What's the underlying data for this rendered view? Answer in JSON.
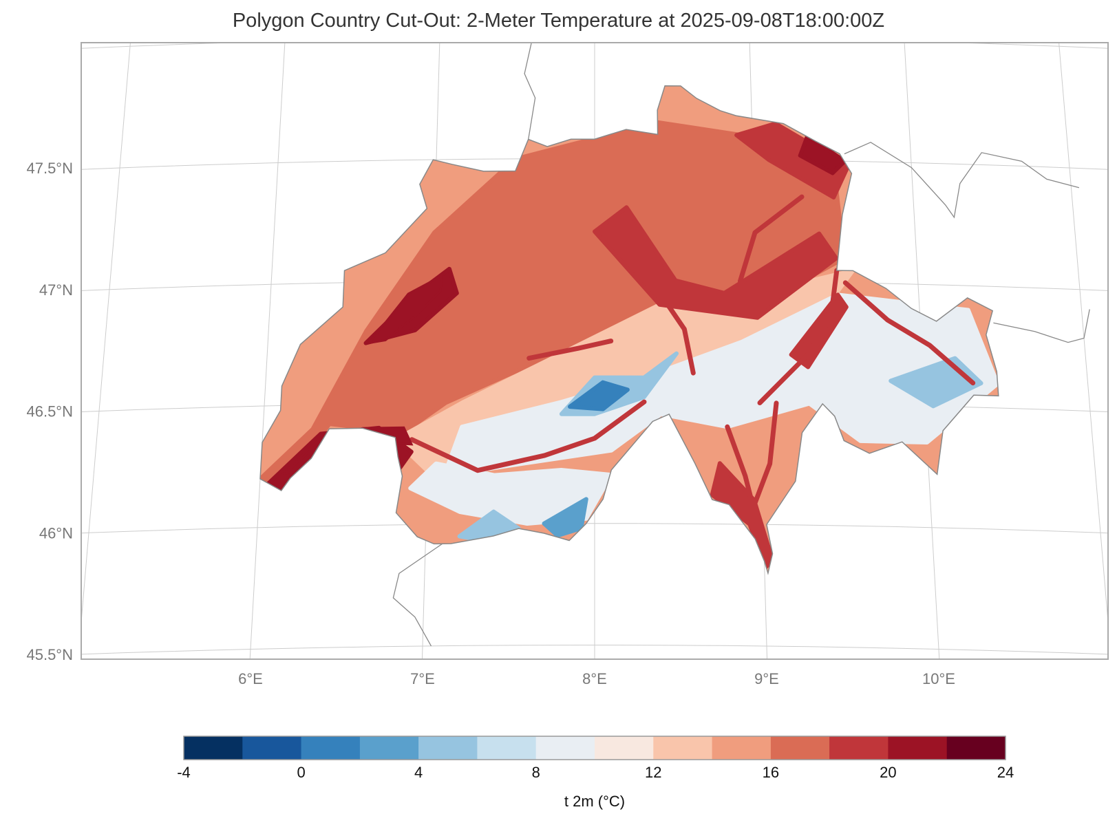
{
  "title": "Polygon Country Cut-Out: 2-Meter Temperature at 2025-09-08T18:00:00Z",
  "map": {
    "region": "Switzerland",
    "variable": "2-meter temperature",
    "valid_time": "2025-09-08T18:00:00Z",
    "lon_range": [
      5.0,
      11.0
    ],
    "lat_range": [
      45.5,
      48.0
    ],
    "gridlines": true,
    "lat_ticks": [
      {
        "value": 45.5,
        "label": "45.5°N"
      },
      {
        "value": 46.0,
        "label": "46°N"
      },
      {
        "value": 46.5,
        "label": "46.5°N"
      },
      {
        "value": 47.0,
        "label": "47°N"
      },
      {
        "value": 47.5,
        "label": "47.5°N"
      }
    ],
    "lon_ticks": [
      {
        "value": 6,
        "label": "6°E"
      },
      {
        "value": 7,
        "label": "7°E"
      },
      {
        "value": 8,
        "label": "8°E"
      },
      {
        "value": 9,
        "label": "9°E"
      },
      {
        "value": 10,
        "label": "10°E"
      }
    ],
    "country_outline": [
      [
        6.0,
        46.2
      ],
      [
        6.13,
        46.15
      ],
      [
        6.18,
        46.2
      ],
      [
        6.3,
        46.28
      ],
      [
        6.4,
        46.4
      ],
      [
        6.6,
        46.4
      ],
      [
        6.8,
        46.36
      ],
      [
        6.82,
        46.28
      ],
      [
        6.85,
        46.2
      ],
      [
        6.82,
        46.05
      ],
      [
        6.95,
        45.95
      ],
      [
        7.05,
        45.92
      ],
      [
        7.15,
        45.92
      ],
      [
        7.4,
        45.95
      ],
      [
        7.55,
        45.98
      ],
      [
        7.7,
        45.96
      ],
      [
        7.85,
        45.93
      ],
      [
        7.95,
        46.0
      ],
      [
        8.05,
        46.1
      ],
      [
        8.1,
        46.22
      ],
      [
        8.35,
        46.42
      ],
      [
        8.45,
        46.45
      ],
      [
        8.6,
        46.25
      ],
      [
        8.7,
        46.1
      ],
      [
        8.8,
        46.08
      ],
      [
        8.95,
        45.94
      ],
      [
        9.0,
        45.85
      ],
      [
        9.02,
        45.8
      ],
      [
        9.05,
        45.88
      ],
      [
        9.02,
        46.0
      ],
      [
        9.2,
        46.18
      ],
      [
        9.25,
        46.38
      ],
      [
        9.38,
        46.5
      ],
      [
        9.45,
        46.45
      ],
      [
        9.5,
        46.35
      ],
      [
        9.65,
        46.3
      ],
      [
        9.85,
        46.35
      ],
      [
        10.05,
        46.22
      ],
      [
        10.1,
        46.4
      ],
      [
        10.3,
        46.55
      ],
      [
        10.45,
        46.55
      ],
      [
        10.45,
        46.65
      ],
      [
        10.4,
        46.8
      ],
      [
        10.45,
        46.9
      ],
      [
        10.3,
        46.95
      ],
      [
        10.1,
        46.85
      ],
      [
        9.95,
        46.9
      ],
      [
        9.8,
        46.98
      ],
      [
        9.6,
        47.05
      ],
      [
        9.5,
        47.05
      ],
      [
        9.55,
        47.28
      ],
      [
        9.62,
        47.45
      ],
      [
        9.55,
        47.53
      ],
      [
        9.4,
        47.58
      ],
      [
        9.2,
        47.65
      ],
      [
        8.9,
        47.68
      ],
      [
        8.8,
        47.7
      ],
      [
        8.65,
        47.75
      ],
      [
        8.55,
        47.8
      ],
      [
        8.45,
        47.8
      ],
      [
        8.4,
        47.7
      ],
      [
        8.4,
        47.6
      ],
      [
        8.2,
        47.62
      ],
      [
        8.0,
        47.58
      ],
      [
        7.85,
        47.58
      ],
      [
        7.7,
        47.55
      ],
      [
        7.58,
        47.58
      ],
      [
        7.5,
        47.45
      ],
      [
        7.3,
        47.45
      ],
      [
        7.1,
        47.48
      ],
      [
        6.98,
        47.5
      ],
      [
        6.9,
        47.4
      ],
      [
        6.95,
        47.3
      ],
      [
        6.7,
        47.12
      ],
      [
        6.45,
        47.05
      ],
      [
        6.45,
        46.9
      ],
      [
        6.2,
        46.75
      ],
      [
        6.1,
        46.58
      ],
      [
        6.1,
        46.48
      ],
      [
        6.0,
        46.35
      ]
    ],
    "lakes": [
      [
        [
          6.15,
          46.22
        ],
        [
          6.35,
          46.35
        ],
        [
          6.6,
          46.4
        ],
        [
          6.85,
          46.4
        ],
        [
          6.9,
          46.33
        ],
        [
          6.7,
          46.34
        ],
        [
          6.5,
          46.3
        ],
        [
          6.3,
          46.24
        ]
      ],
      [
        [
          6.62,
          46.75
        ],
        [
          6.85,
          46.95
        ],
        [
          7.05,
          47.02
        ],
        [
          7.05,
          46.96
        ],
        [
          6.9,
          46.86
        ],
        [
          6.72,
          46.76
        ]
      ]
    ],
    "neighbor_borders": [
      [
        [
          7.58,
          47.58
        ],
        [
          7.62,
          47.75
        ],
        [
          7.55,
          47.85
        ],
        [
          7.6,
          48.0
        ]
      ],
      [
        [
          7.1,
          45.92
        ],
        [
          6.85,
          45.8
        ],
        [
          6.82,
          45.7
        ],
        [
          6.95,
          45.62
        ],
        [
          7.05,
          45.5
        ]
      ],
      [
        [
          9.58,
          47.53
        ],
        [
          9.75,
          47.58
        ],
        [
          10.0,
          47.48
        ],
        [
          10.2,
          47.33
        ],
        [
          10.25,
          47.28
        ],
        [
          10.3,
          47.42
        ],
        [
          10.45,
          47.55
        ],
        [
          10.7,
          47.52
        ],
        [
          10.85,
          47.45
        ],
        [
          11.05,
          47.42
        ]
      ],
      [
        [
          10.45,
          46.85
        ],
        [
          10.7,
          46.82
        ],
        [
          10.9,
          46.78
        ],
        [
          11.0,
          46.8
        ],
        [
          11.05,
          46.92
        ]
      ]
    ]
  },
  "colorbar": {
    "label": "t 2m (°C)",
    "boundaries": [
      -4,
      -2,
      0,
      2,
      4,
      6,
      8,
      10,
      12,
      14,
      16,
      18,
      20,
      22,
      24
    ],
    "tick_labels": [
      "-4",
      "0",
      "4",
      "8",
      "12",
      "16",
      "20",
      "24"
    ],
    "colors": [
      "#053061",
      "#18579c",
      "#3581bc",
      "#5aa0cc",
      "#96c4e0",
      "#c7e0ee",
      "#e9eef3",
      "#f8e8e0",
      "#f9c5ab",
      "#f09d7e",
      "#da6c55",
      "#c0363a",
      "#9c1325",
      "#67001f"
    ]
  },
  "temperature_zones": [
    {
      "value": 17,
      "polygon": [
        [
          6.0,
          46.2
        ],
        [
          6.3,
          46.4
        ],
        [
          6.6,
          46.8
        ],
        [
          7.0,
          47.2
        ],
        [
          7.5,
          47.5
        ],
        [
          8.4,
          47.65
        ],
        [
          9.5,
          47.55
        ],
        [
          9.55,
          47.1
        ],
        [
          9.0,
          46.9
        ],
        [
          8.2,
          46.85
        ],
        [
          7.6,
          46.65
        ],
        [
          7.1,
          46.5
        ],
        [
          6.85,
          46.38
        ],
        [
          6.4,
          46.42
        ],
        [
          6.15,
          46.18
        ]
      ]
    },
    {
      "value": 13,
      "polygon": [
        [
          6.8,
          46.35
        ],
        [
          7.2,
          46.5
        ],
        [
          7.8,
          46.7
        ],
        [
          8.4,
          46.9
        ],
        [
          9.0,
          46.95
        ],
        [
          9.6,
          47.05
        ],
        [
          9.2,
          46.7
        ],
        [
          8.7,
          46.55
        ],
        [
          8.1,
          46.4
        ],
        [
          7.5,
          46.3
        ],
        [
          7.0,
          46.22
        ]
      ]
    },
    {
      "value": 9,
      "polygon": [
        [
          7.2,
          46.4
        ],
        [
          7.8,
          46.5
        ],
        [
          8.3,
          46.6
        ],
        [
          8.9,
          46.75
        ],
        [
          9.5,
          46.95
        ],
        [
          10.3,
          46.9
        ],
        [
          10.45,
          46.6
        ],
        [
          10.0,
          46.35
        ],
        [
          9.6,
          46.35
        ],
        [
          9.3,
          46.5
        ],
        [
          8.8,
          46.4
        ],
        [
          8.4,
          46.45
        ],
        [
          8.1,
          46.3
        ],
        [
          7.6,
          46.25
        ],
        [
          7.1,
          46.2
        ]
      ]
    },
    {
      "value": 9,
      "polygon": [
        [
          6.9,
          46.15
        ],
        [
          7.2,
          46.05
        ],
        [
          7.6,
          46.0
        ],
        [
          7.95,
          46.02
        ],
        [
          8.1,
          46.2
        ],
        [
          7.8,
          46.22
        ],
        [
          7.4,
          46.2
        ],
        [
          7.05,
          46.25
        ]
      ]
    },
    {
      "value": 5,
      "polygon": [
        [
          7.8,
          46.45
        ],
        [
          8.0,
          46.6
        ],
        [
          8.3,
          46.6
        ],
        [
          8.5,
          46.7
        ],
        [
          8.3,
          46.52
        ],
        [
          8.0,
          46.45
        ]
      ]
    },
    {
      "value": 1,
      "polygon": [
        [
          7.85,
          46.48
        ],
        [
          8.05,
          46.58
        ],
        [
          8.2,
          46.55
        ],
        [
          8.05,
          46.47
        ]
      ]
    },
    {
      "value": 3,
      "polygon": [
        [
          7.7,
          46.0
        ],
        [
          7.95,
          46.1
        ],
        [
          7.92,
          45.98
        ],
        [
          7.78,
          45.95
        ]
      ]
    },
    {
      "value": 5,
      "polygon": [
        [
          7.2,
          45.95
        ],
        [
          7.4,
          46.05
        ],
        [
          7.55,
          45.98
        ],
        [
          7.35,
          45.93
        ]
      ]
    },
    {
      "value": 5,
      "polygon": [
        [
          9.8,
          46.6
        ],
        [
          10.2,
          46.7
        ],
        [
          10.35,
          46.6
        ],
        [
          10.05,
          46.5
        ]
      ]
    },
    {
      "value": 19,
      "polygon": [
        [
          9.15,
          47.65
        ],
        [
          9.6,
          47.48
        ],
        [
          9.5,
          47.35
        ],
        [
          9.1,
          47.5
        ],
        [
          8.9,
          47.6
        ]
      ]
    },
    {
      "value": 21,
      "polygon": [
        [
          9.35,
          47.6
        ],
        [
          9.58,
          47.5
        ],
        [
          9.5,
          47.45
        ],
        [
          9.3,
          47.52
        ]
      ]
    },
    {
      "value": 21,
      "polygon": [
        [
          6.05,
          46.18
        ],
        [
          6.35,
          46.38
        ],
        [
          6.7,
          46.4
        ],
        [
          6.9,
          46.3
        ],
        [
          6.8,
          46.2
        ],
        [
          6.6,
          46.3
        ],
        [
          6.35,
          46.3
        ],
        [
          6.15,
          46.15
        ]
      ]
    },
    {
      "value": 21,
      "polygon": [
        [
          6.6,
          46.75
        ],
        [
          6.9,
          46.95
        ],
        [
          7.1,
          47.05
        ],
        [
          7.15,
          46.95
        ],
        [
          6.9,
          46.8
        ]
      ]
    },
    {
      "value": 19,
      "polygon": [
        [
          8.75,
          46.25
        ],
        [
          8.95,
          46.1
        ],
        [
          9.05,
          45.85
        ],
        [
          9.0,
          45.82
        ],
        [
          8.92,
          46.0
        ],
        [
          8.7,
          46.12
        ]
      ]
    },
    {
      "value": 19,
      "polygon": [
        [
          8.2,
          47.3
        ],
        [
          8.5,
          47.0
        ],
        [
          8.8,
          46.95
        ],
        [
          9.4,
          47.2
        ],
        [
          9.5,
          47.1
        ],
        [
          9.0,
          46.85
        ],
        [
          8.4,
          46.9
        ],
        [
          8.0,
          47.2
        ]
      ]
    },
    {
      "value": 18,
      "polygon": [
        [
          9.2,
          46.7
        ],
        [
          9.5,
          46.95
        ],
        [
          9.55,
          46.9
        ],
        [
          9.3,
          46.65
        ]
      ]
    }
  ],
  "valleys": [
    {
      "value": 19,
      "points": [
        [
          6.9,
          46.35
        ],
        [
          7.3,
          46.22
        ],
        [
          7.7,
          46.28
        ],
        [
          8.0,
          46.35
        ],
        [
          8.3,
          46.5
        ]
      ]
    },
    {
      "value": 19,
      "points": [
        [
          7.6,
          46.68
        ],
        [
          7.9,
          46.72
        ],
        [
          8.1,
          46.75
        ]
      ]
    },
    {
      "value": 19,
      "points": [
        [
          8.4,
          46.95
        ],
        [
          8.55,
          46.8
        ],
        [
          8.6,
          46.62
        ]
      ]
    },
    {
      "value": 19,
      "points": [
        [
          9.5,
          47.05
        ],
        [
          9.45,
          46.85
        ],
        [
          9.3,
          46.7
        ],
        [
          9.0,
          46.5
        ]
      ]
    },
    {
      "value": 19,
      "points": [
        [
          9.55,
          47.0
        ],
        [
          9.8,
          46.85
        ],
        [
          10.05,
          46.75
        ],
        [
          10.3,
          46.6
        ]
      ]
    },
    {
      "value": 19,
      "points": [
        [
          8.8,
          46.4
        ],
        [
          8.9,
          46.2
        ],
        [
          8.95,
          46.05
        ]
      ]
    },
    {
      "value": 19,
      "points": [
        [
          9.1,
          46.5
        ],
        [
          9.05,
          46.25
        ],
        [
          8.95,
          46.08
        ]
      ]
    },
    {
      "value": 19,
      "points": [
        [
          8.9,
          47.0
        ],
        [
          9.0,
          47.2
        ],
        [
          9.3,
          47.35
        ]
      ]
    }
  ]
}
